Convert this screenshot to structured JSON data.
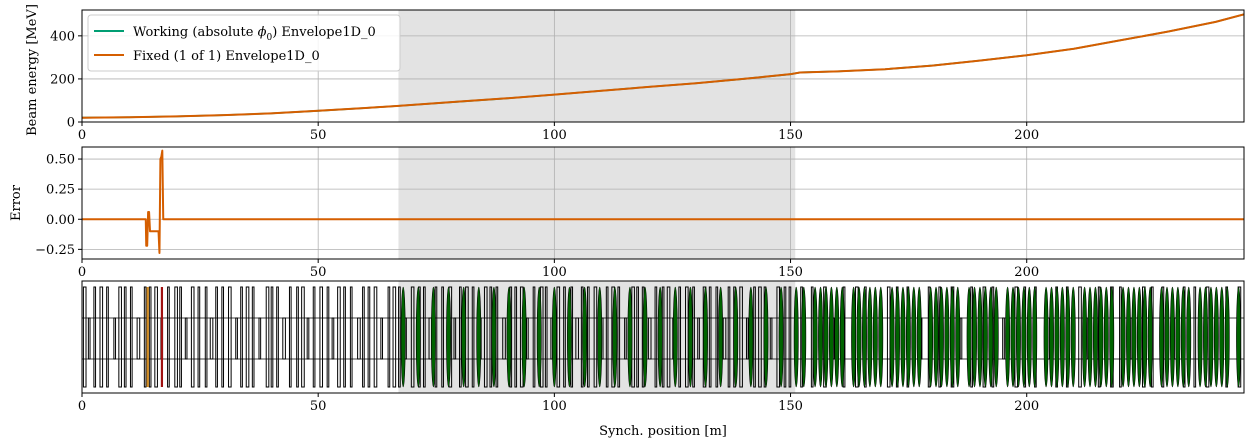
{
  "colors": {
    "working": "#009e73",
    "fixed": "#d55e00",
    "shade": "#e3e3e3",
    "grid": "#b0b0b0",
    "cavity": "#006400",
    "bad_red": "#a01010",
    "bad_orange": "#d08a20"
  },
  "chart_data": [
    {
      "type": "line",
      "panel": "energy",
      "ylabel": "Beam energy [MeV]",
      "xlim": [
        0,
        246
      ],
      "ylim": [
        0,
        520
      ],
      "x_ticks": [
        0,
        50,
        100,
        150,
        200
      ],
      "y_ticks": [
        0,
        200,
        400
      ],
      "y_tick_labels": [
        "0",
        "200",
        "400"
      ],
      "grid": true,
      "shaded_region": [
        67,
        151
      ],
      "legend": {
        "placement": "upper-left",
        "entries": [
          {
            "name": "Working (absolute ϕ₀) Envelope1D_0",
            "prefix": "Working (absolute ",
            "symbol": "ϕ",
            "sub": "0",
            "suffix": ") Envelope1D_0",
            "color": "#009e73"
          },
          {
            "name": "Fixed (1 of 1) Envelope1D_0",
            "prefix": "Fixed (1 of 1) Envelope1D_0",
            "color": "#d55e00"
          }
        ]
      },
      "series": [
        {
          "name": "Working (absolute ϕ₀) Envelope1D_0",
          "key": "working",
          "x": [
            0,
            10,
            20,
            30,
            40,
            50,
            60,
            67,
            80,
            90,
            100,
            110,
            120,
            130,
            140,
            150,
            152,
            160,
            170,
            180,
            190,
            200,
            210,
            220,
            230,
            240,
            246
          ],
          "y": [
            20,
            22,
            26,
            32,
            40,
            52,
            65,
            75,
            95,
            110,
            127,
            145,
            163,
            180,
            200,
            222,
            230,
            235,
            245,
            262,
            285,
            310,
            340,
            380,
            420,
            465,
            500
          ]
        },
        {
          "name": "Fixed (1 of 1) Envelope1D_0",
          "key": "fixed",
          "x": [
            0,
            10,
            20,
            30,
            40,
            50,
            60,
            67,
            80,
            90,
            100,
            110,
            120,
            130,
            140,
            150,
            152,
            160,
            170,
            180,
            190,
            200,
            210,
            220,
            230,
            240,
            246
          ],
          "y": [
            20,
            22,
            26,
            32,
            40,
            52,
            65,
            75,
            95,
            110,
            127,
            145,
            163,
            180,
            200,
            222,
            230,
            235,
            245,
            262,
            285,
            310,
            340,
            380,
            420,
            465,
            500
          ]
        }
      ]
    },
    {
      "type": "line",
      "panel": "error",
      "ylabel": "Error",
      "xlim": [
        0,
        246
      ],
      "ylim": [
        -0.33,
        0.6
      ],
      "x_ticks": [
        0,
        50,
        100,
        150,
        200
      ],
      "y_ticks": [
        -0.25,
        0.0,
        0.25,
        0.5
      ],
      "y_tick_labels": [
        "−0.25",
        "0.00",
        "0.25",
        "0.50"
      ],
      "grid": true,
      "shaded_region": [
        67,
        151
      ],
      "series": [
        {
          "name": "Fixed (1 of 1) Envelope1D_0",
          "key": "fixed",
          "x": [
            0,
            13.5,
            13.6,
            13.8,
            14.0,
            14.2,
            14.4,
            16.2,
            16.4,
            16.6,
            16.8,
            17.0,
            17.2,
            246
          ],
          "y": [
            0,
            0,
            -0.22,
            -0.22,
            0.06,
            0.06,
            -0.1,
            -0.1,
            -0.28,
            0.5,
            0.52,
            0.57,
            0,
            0
          ]
        }
      ]
    },
    {
      "type": "structure",
      "panel": "linac-structure",
      "xlabel": "Synch. position [m]",
      "xlim": [
        0,
        246
      ],
      "x_ticks": [
        0,
        50,
        100,
        150,
        200
      ],
      "shaded_region": [
        67,
        151
      ],
      "cavity_section_start": 152,
      "highlighted_elements": [
        {
          "x": 13.9,
          "color_key": "bad_orange"
        },
        {
          "x": 16.9,
          "color_key": "bad_red"
        }
      ]
    }
  ]
}
